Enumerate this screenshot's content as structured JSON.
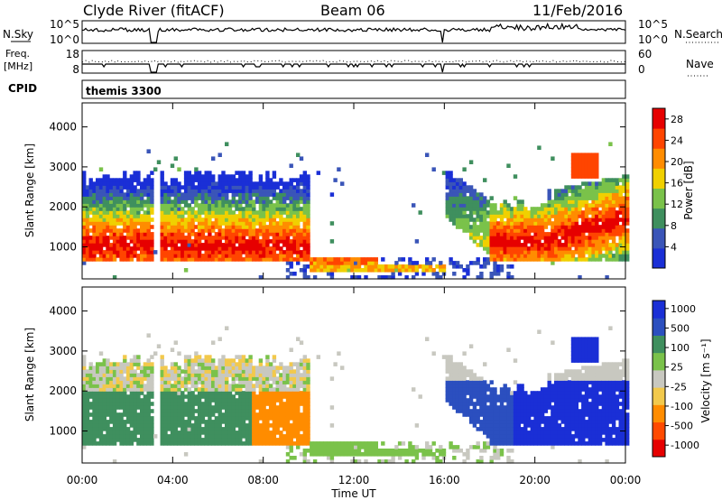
{
  "header": {
    "station": "Clyde River (fitACF)",
    "beam": "Beam 06",
    "date": "11/Feb/2016"
  },
  "top_panels": {
    "nsky_label": "N.Sky",
    "nsearch_label": "N.Search",
    "freq_label": "Freq.",
    "freq_unit": "[MHz]",
    "cpid_label": "CPID",
    "nave_label": "Nave",
    "cpid_value": "themis 3300",
    "noise_ticks_left": [
      "10^5",
      "10^0"
    ],
    "noise_ticks_right": [
      "10^5",
      "10^0"
    ],
    "freq_ticks_left": [
      "18",
      "8"
    ],
    "nave_ticks_right": [
      "60",
      "0"
    ]
  },
  "colors": {
    "power_scale": [
      "#1a2fd6",
      "#3a55b8",
      "#3f8f5e",
      "#7ac24a",
      "#f0d000",
      "#ff8c00",
      "#ff4500",
      "#e60000"
    ],
    "velocity_scale": [
      "#e60000",
      "#ff4a00",
      "#ff8c00",
      "#f2c94c",
      "#c8c8c0",
      "#7ac24a",
      "#3f8f5e",
      "#2b4fbf",
      "#1a2fd6"
    ]
  },
  "chart_data": [
    {
      "type": "heatmap",
      "panel": "power",
      "ylabel": "Slant Range [km]",
      "yticks": [
        "1000",
        "2000",
        "3000",
        "4000"
      ],
      "ylim": [
        200,
        4600
      ],
      "xlim": [
        "00:00",
        "24:00"
      ],
      "colorbar_label": "Power [dB]",
      "colorbar_ticks": [
        "4",
        "8",
        "12",
        "16",
        "20",
        "24",
        "28"
      ],
      "colorbar_range": [
        0,
        30
      ]
    },
    {
      "type": "heatmap",
      "panel": "velocity",
      "ylabel": "Slant Range [km]",
      "yticks": [
        "1000",
        "2000",
        "3000",
        "4000"
      ],
      "ylim": [
        200,
        4600
      ],
      "xlabel": "Time UT",
      "xticks": [
        "00:00",
        "04:00",
        "08:00",
        "12:00",
        "16:00",
        "20:00",
        "00:00"
      ],
      "xlim": [
        "00:00",
        "24:00"
      ],
      "colorbar_label": "Velocity [m s⁻¹]",
      "colorbar_ticks": [
        "1000",
        "500",
        "100",
        "25",
        "-25",
        "-100",
        "-500",
        "-1000"
      ]
    }
  ]
}
